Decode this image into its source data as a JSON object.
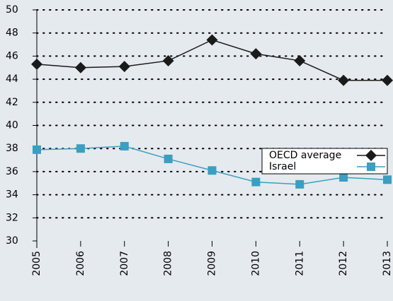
{
  "chart_data": {
    "type": "line",
    "x": [
      2005,
      2006,
      2007,
      2008,
      2009,
      2010,
      2011,
      2012,
      2013
    ],
    "xlim": [
      2005,
      2013
    ],
    "xticks": [
      2005,
      2006,
      2007,
      2008,
      2009,
      2010,
      2011,
      2012,
      2013
    ],
    "ylim": [
      30,
      50
    ],
    "yticks": [
      30,
      32,
      34,
      36,
      38,
      40,
      42,
      44,
      46,
      48,
      50
    ],
    "grid": true,
    "legend": "right",
    "series": [
      {
        "name": "OECD average",
        "color": "#1a1a1a",
        "marker": "diamond",
        "values": [
          45.3,
          45.0,
          45.1,
          45.6,
          47.4,
          46.2,
          45.6,
          43.9,
          43.9
        ]
      },
      {
        "name": "Israel",
        "color": "#3a9fc0",
        "marker": "square",
        "values": [
          37.9,
          38.0,
          38.2,
          37.1,
          36.1,
          35.1,
          34.9,
          35.5,
          35.3
        ]
      }
    ]
  }
}
